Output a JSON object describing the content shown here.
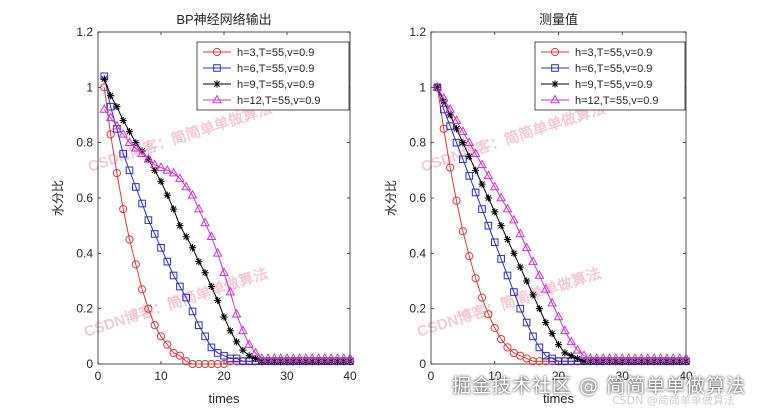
{
  "chart_data": [
    {
      "type": "line",
      "title": "BP神经网络输出",
      "xlabel": "times",
      "ylabel": "水分比",
      "xlim": [
        0,
        40
      ],
      "ylim": [
        0,
        1.2
      ],
      "xticks": [
        0,
        10,
        20,
        30,
        40
      ],
      "yticks": [
        0,
        0.2,
        0.4,
        0.6,
        0.8,
        1,
        1.2
      ],
      "ytick_labels": [
        "0",
        "0.2",
        "0.4",
        "0.6",
        "0.8",
        "1",
        "1.2"
      ],
      "grid": false,
      "legend_position": "top-right",
      "x": [
        1,
        2,
        3,
        4,
        5,
        6,
        7,
        8,
        9,
        10,
        11,
        12,
        13,
        14,
        15,
        16,
        17,
        18,
        19,
        20,
        21,
        22,
        23,
        24,
        25,
        26,
        27,
        28,
        29,
        30,
        31,
        32,
        33,
        34,
        35,
        36,
        37,
        38,
        39,
        40
      ],
      "series": [
        {
          "name": "h=3,T=55,v=0.9",
          "color": "#d93b3b",
          "marker": "circle",
          "values": [
            1.0,
            0.83,
            0.69,
            0.56,
            0.45,
            0.36,
            0.27,
            0.2,
            0.14,
            0.1,
            0.07,
            0.04,
            0.03,
            0.01,
            0.0,
            0.0,
            0.0,
            0.0,
            0.0,
            0.0,
            0.01,
            0.01,
            0.01,
            0.01,
            0.01,
            0.01,
            0.01,
            0.01,
            0.01,
            0.01,
            0.01,
            0.01,
            0.01,
            0.01,
            0.01,
            0.01,
            0.01,
            0.01,
            0.01,
            0.01
          ]
        },
        {
          "name": "h=6,T=55,v=0.9",
          "color": "#2b2bd6",
          "marker": "square",
          "values": [
            1.04,
            0.93,
            0.85,
            0.76,
            0.7,
            0.64,
            0.58,
            0.52,
            0.47,
            0.42,
            0.37,
            0.32,
            0.28,
            0.24,
            0.19,
            0.14,
            0.1,
            0.06,
            0.04,
            0.03,
            0.02,
            0.02,
            0.01,
            0.01,
            0.01,
            0.01,
            0.01,
            0.01,
            0.01,
            0.01,
            0.01,
            0.01,
            0.01,
            0.01,
            0.01,
            0.01,
            0.01,
            0.01,
            0.01,
            0.01
          ]
        },
        {
          "name": "h=9,T=55,v=0.9",
          "color": "#000000",
          "marker": "star",
          "values": [
            1.03,
            0.97,
            0.93,
            0.88,
            0.84,
            0.8,
            0.77,
            0.74,
            0.7,
            0.66,
            0.61,
            0.56,
            0.5,
            0.46,
            0.42,
            0.37,
            0.33,
            0.28,
            0.23,
            0.17,
            0.12,
            0.08,
            0.05,
            0.03,
            0.02,
            0.01,
            0.01,
            0.01,
            0.01,
            0.01,
            0.01,
            0.01,
            0.01,
            0.01,
            0.01,
            0.01,
            0.01,
            0.01,
            0.01,
            0.01
          ]
        },
        {
          "name": "h=12,T=55,v=0.9",
          "color": "#cc33cc",
          "marker": "triangle",
          "values": [
            0.92,
            0.89,
            0.86,
            0.83,
            0.8,
            0.78,
            0.76,
            0.74,
            0.72,
            0.71,
            0.7,
            0.69,
            0.67,
            0.64,
            0.61,
            0.56,
            0.51,
            0.46,
            0.4,
            0.33,
            0.26,
            0.18,
            0.12,
            0.07,
            0.04,
            0.02,
            0.02,
            0.02,
            0.02,
            0.02,
            0.02,
            0.02,
            0.02,
            0.02,
            0.02,
            0.02,
            0.02,
            0.02,
            0.02,
            0.02
          ]
        }
      ]
    },
    {
      "type": "line",
      "title": "测量值",
      "xlabel": "times",
      "ylabel": "水分比",
      "xlim": [
        0,
        40
      ],
      "ylim": [
        0,
        1.2
      ],
      "xticks": [
        0,
        10,
        20,
        30,
        40
      ],
      "yticks": [
        0,
        0.2,
        0.4,
        0.6,
        0.8,
        1,
        1.2
      ],
      "ytick_labels": [
        "0",
        "0.2",
        "0.4",
        "0.6",
        "0.8",
        "1",
        "1.2"
      ],
      "grid": false,
      "legend_position": "top-right",
      "x": [
        1,
        2,
        3,
        4,
        5,
        6,
        7,
        8,
        9,
        10,
        11,
        12,
        13,
        14,
        15,
        16,
        17,
        18,
        19,
        20,
        21,
        22,
        23,
        24,
        25,
        26,
        27,
        28,
        29,
        30,
        31,
        32,
        33,
        34,
        35,
        36,
        37,
        38,
        39,
        40
      ],
      "series": [
        {
          "name": "h=3,T=55,v=0.9",
          "color": "#d93b3b",
          "marker": "circle",
          "values": [
            1.0,
            0.85,
            0.71,
            0.59,
            0.48,
            0.39,
            0.31,
            0.24,
            0.18,
            0.13,
            0.09,
            0.06,
            0.04,
            0.03,
            0.02,
            0.01,
            0.01,
            0.01,
            0.01,
            0.01,
            0.01,
            0.01,
            0.01,
            0.01,
            0.01,
            0.01,
            0.01,
            0.01,
            0.01,
            0.01,
            0.01,
            0.01,
            0.01,
            0.01,
            0.01,
            0.01,
            0.01,
            0.01,
            0.01,
            0.01
          ]
        },
        {
          "name": "h=6,T=55,v=0.9",
          "color": "#2b2bd6",
          "marker": "square",
          "values": [
            1.0,
            0.92,
            0.86,
            0.8,
            0.74,
            0.68,
            0.62,
            0.56,
            0.5,
            0.44,
            0.38,
            0.32,
            0.26,
            0.2,
            0.15,
            0.1,
            0.06,
            0.03,
            0.02,
            0.01,
            0.01,
            0.01,
            0.01,
            0.01,
            0.01,
            0.01,
            0.01,
            0.01,
            0.01,
            0.01,
            0.01,
            0.01,
            0.01,
            0.01,
            0.01,
            0.01,
            0.01,
            0.01,
            0.01,
            0.01
          ]
        },
        {
          "name": "h=9,T=55,v=0.9",
          "color": "#000000",
          "marker": "star",
          "values": [
            1.0,
            0.95,
            0.9,
            0.85,
            0.8,
            0.75,
            0.7,
            0.65,
            0.6,
            0.55,
            0.5,
            0.45,
            0.4,
            0.35,
            0.3,
            0.25,
            0.2,
            0.15,
            0.11,
            0.07,
            0.04,
            0.03,
            0.02,
            0.01,
            0.01,
            0.01,
            0.01,
            0.01,
            0.01,
            0.01,
            0.01,
            0.01,
            0.01,
            0.01,
            0.01,
            0.01,
            0.01,
            0.01,
            0.01,
            0.01
          ]
        },
        {
          "name": "h=12,T=55,v=0.9",
          "color": "#cc33cc",
          "marker": "triangle",
          "values": [
            1.0,
            0.96,
            0.92,
            0.88,
            0.84,
            0.8,
            0.76,
            0.72,
            0.68,
            0.64,
            0.6,
            0.56,
            0.52,
            0.47,
            0.42,
            0.37,
            0.32,
            0.27,
            0.22,
            0.17,
            0.12,
            0.08,
            0.05,
            0.03,
            0.02,
            0.02,
            0.02,
            0.02,
            0.02,
            0.02,
            0.02,
            0.02,
            0.02,
            0.02,
            0.02,
            0.02,
            0.02,
            0.02,
            0.02,
            0.02
          ]
        }
      ]
    }
  ],
  "watermarks": {
    "author_mark": "CSDN博客：简简单单做算法",
    "site_mark": "掘金技术社区 @ 简简单单做算法",
    "site_mark_small": "CSDN @简简单单做算法",
    "color": "#e8a0b0"
  }
}
